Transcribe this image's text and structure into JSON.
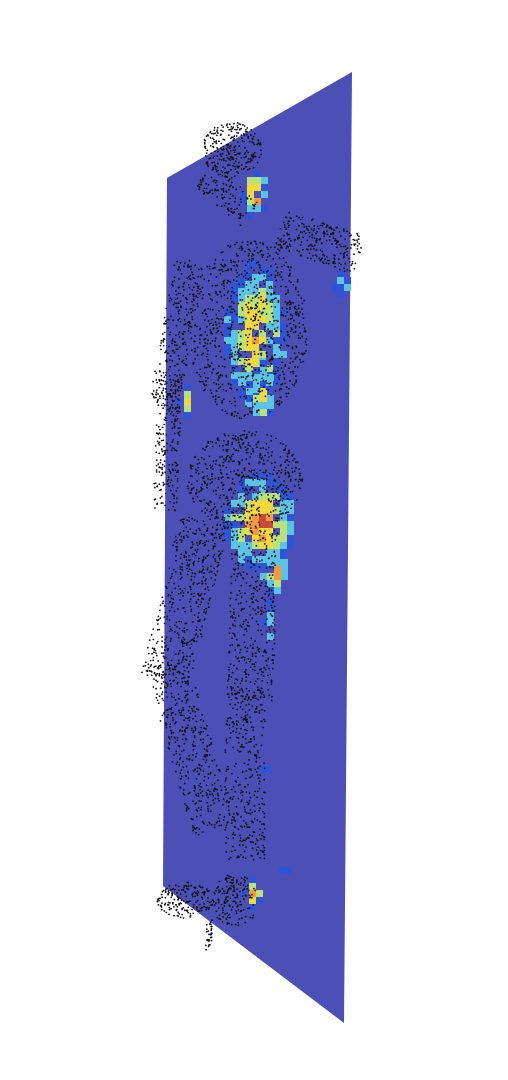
{
  "scene": {
    "plane_color": "#4b4fb6",
    "point_color": "#111111",
    "background": "#ffffff",
    "heatmap_colormap": [
      "#2f55d6",
      "#59c4e6",
      "#b9e27a",
      "#f1d83d",
      "#f59a3a",
      "#c84a3b"
    ]
  }
}
